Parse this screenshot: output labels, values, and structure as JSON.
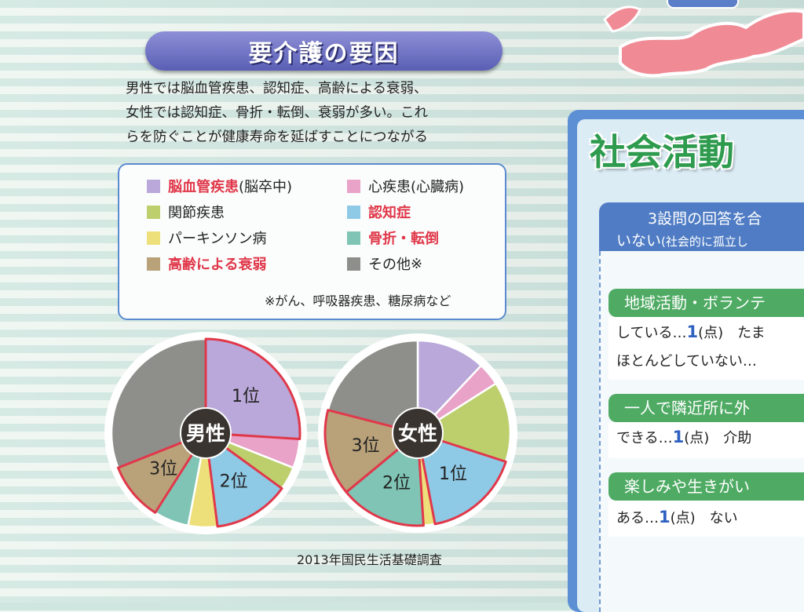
{
  "heading": "要介護の要因",
  "intro_lines": [
    "男性では脳血管疾患、認知症、高齢による衰弱、",
    "女性では認知症、骨折・転倒、衰弱が多い。これ",
    "らを防ぐことが健康寿命を延ばすことにつながる"
  ],
  "legend": {
    "items": [
      {
        "main": "脳血管疾患",
        "suffix": "(脳卒中)",
        "highlight": true,
        "color": "#b9a8d9"
      },
      {
        "main": "心疾患",
        "suffix": "(心臓病)",
        "highlight": false,
        "color": "#e9a2c8"
      },
      {
        "main": "関節疾患",
        "suffix": "",
        "highlight": false,
        "color": "#bccf6c"
      },
      {
        "main": "認知症",
        "suffix": "",
        "highlight": true,
        "color": "#8ec9e6"
      },
      {
        "main": "パーキンソン病",
        "suffix": "",
        "highlight": false,
        "color": "#ede07a"
      },
      {
        "main": "骨折・転倒",
        "suffix": "",
        "highlight": true,
        "color": "#7fc4b4"
      },
      {
        "main": "高齢による衰弱",
        "suffix": "",
        "highlight": true,
        "color": "#b9a27a"
      },
      {
        "main": "その他",
        "suffix": "※",
        "highlight": false,
        "color": "#8e8e8a"
      }
    ],
    "note": "※がん、呼吸器疾患、糖尿病など"
  },
  "chart_data": [
    {
      "type": "pie",
      "center_label": "男性",
      "slices": [
        {
          "category": "脳血管疾患",
          "value": 26,
          "rank_label": "1位",
          "color": "#b9a8d9"
        },
        {
          "category": "心疾患",
          "value": 5,
          "rank_label": "",
          "color": "#e9a2c8"
        },
        {
          "category": "関節疾患",
          "value": 4,
          "rank_label": "",
          "color": "#bccf6c"
        },
        {
          "category": "認知症",
          "value": 13,
          "rank_label": "2位",
          "color": "#8ec9e6"
        },
        {
          "category": "パーキンソン病",
          "value": 5,
          "rank_label": "",
          "color": "#ede07a"
        },
        {
          "category": "骨折・転倒",
          "value": 6,
          "rank_label": "",
          "color": "#7fc4b4"
        },
        {
          "category": "高齢による衰弱",
          "value": 10,
          "rank_label": "3位",
          "color": "#b9a27a"
        },
        {
          "category": "その他",
          "value": 31,
          "rank_label": "",
          "color": "#8e8e8a"
        }
      ]
    },
    {
      "type": "pie",
      "center_label": "女性",
      "slices": [
        {
          "category": "脳血管疾患",
          "value": 12,
          "rank_label": "",
          "color": "#b9a8d9"
        },
        {
          "category": "心疾患",
          "value": 4,
          "rank_label": "",
          "color": "#e9a2c8"
        },
        {
          "category": "関節疾患",
          "value": 14,
          "rank_label": "",
          "color": "#bccf6c"
        },
        {
          "category": "認知症",
          "value": 17,
          "rank_label": "1位",
          "color": "#8ec9e6"
        },
        {
          "category": "パーキンソン病",
          "value": 2,
          "rank_label": "",
          "color": "#ede07a"
        },
        {
          "category": "骨折・転倒",
          "value": 15,
          "rank_label": "2位",
          "color": "#7fc4b4"
        },
        {
          "category": "高齢による衰弱",
          "value": 15,
          "rank_label": "3位",
          "color": "#b9a27a"
        },
        {
          "category": "その他",
          "value": 21,
          "rank_label": "",
          "color": "#8e8e8a"
        }
      ]
    }
  ],
  "source": "2013年国民生活基礎調査",
  "side_panel": {
    "title": "社会活動",
    "question_line1": "3設問の回答を合",
    "question_line2_main": "いない",
    "question_line2_small": "(社会的に孤立し",
    "sections": [
      {
        "heading": "地域活動・ボランテ",
        "rows": [
          {
            "pre": "している…",
            "point": "1",
            "post": "(点)　たま"
          },
          {
            "pre": "ほとんどしていない…",
            "point": "",
            "post": ""
          }
        ]
      },
      {
        "heading": "一人で隣近所に外",
        "rows": [
          {
            "pre": "できる…",
            "point": "1",
            "post": "(点)　介助"
          }
        ]
      },
      {
        "heading": "楽しみや生きがい",
        "rows": [
          {
            "pre": "ある…",
            "point": "1",
            "post": "(点)　ない"
          }
        ]
      }
    ]
  }
}
